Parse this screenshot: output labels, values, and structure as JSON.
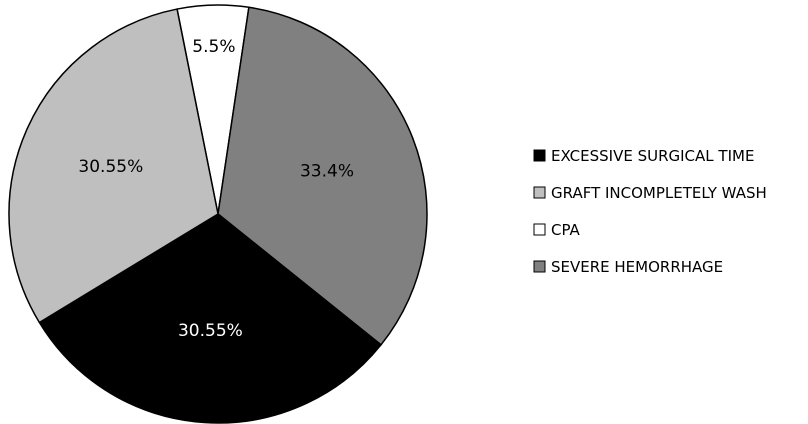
{
  "chart_data": {
    "type": "pie",
    "title": "",
    "slices": [
      {
        "name": "EXCESSIVE SURGICAL TIME",
        "value": 30.55,
        "label": "30.55%",
        "color": "#000000",
        "label_color": "#ffffff"
      },
      {
        "name": "GRAFT INCOMPLETELY WASH",
        "value": 30.55,
        "label": "30.55%",
        "color": "#bfbfbf",
        "label_color": "#000000"
      },
      {
        "name": "CPA",
        "value": 5.5,
        "label": "5.5%",
        "color": "#ffffff",
        "label_color": "#000000"
      },
      {
        "name": "SEVERE HEMORRHAGE",
        "value": 33.4,
        "label": "33.4%",
        "color": "#808080",
        "label_color": "#000000"
      }
    ],
    "legend_placement": "right",
    "slice_border_color": "#000000"
  }
}
